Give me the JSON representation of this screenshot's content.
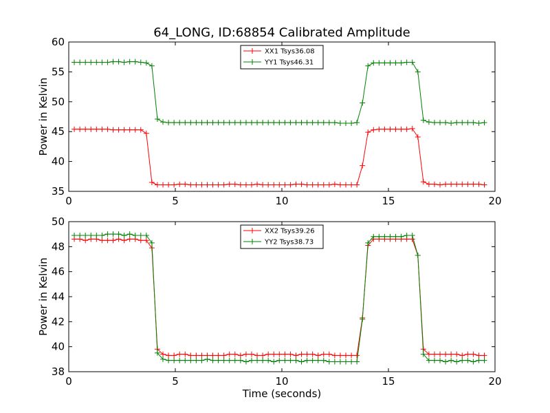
{
  "chart_data": [
    {
      "type": "line",
      "title": "64_LONG, ID:68854 Calibrated Amplitude",
      "xlabel": "",
      "ylabel": "Power in Kelvin",
      "xlim": [
        0,
        20
      ],
      "ylim": [
        35,
        60
      ],
      "xticks": [
        0,
        5,
        10,
        15,
        20
      ],
      "yticks": [
        35,
        40,
        45,
        50,
        55,
        60
      ],
      "grid": false,
      "legend_position": "top-center",
      "series": [
        {
          "name": "XX1 Tsys36.08",
          "color": "#ff0000",
          "x": [
            0.26,
            0.52,
            0.78,
            1.04,
            1.3,
            1.56,
            1.82,
            2.08,
            2.34,
            2.6,
            2.86,
            3.12,
            3.38,
            3.64,
            3.9,
            4.16,
            4.42,
            4.68,
            4.94,
            5.2,
            5.46,
            5.72,
            5.98,
            6.24,
            6.5,
            6.76,
            7.02,
            7.28,
            7.54,
            7.8,
            8.06,
            8.32,
            8.58,
            8.84,
            9.1,
            9.36,
            9.62,
            9.88,
            10.14,
            10.4,
            10.66,
            10.92,
            11.18,
            11.44,
            11.7,
            11.96,
            12.22,
            12.48,
            12.74,
            13.0,
            13.26,
            13.52,
            13.78,
            14.04,
            14.3,
            14.56,
            14.82,
            15.08,
            15.34,
            15.6,
            15.86,
            16.12,
            16.38,
            16.64,
            16.9,
            17.16,
            17.42,
            17.68,
            17.94,
            18.2,
            18.46,
            18.72,
            18.98,
            19.24,
            19.5
          ],
          "y": [
            45.4,
            45.4,
            45.4,
            45.4,
            45.4,
            45.4,
            45.4,
            45.3,
            45.3,
            45.3,
            45.3,
            45.3,
            45.3,
            44.7,
            36.5,
            36.1,
            36.1,
            36.1,
            36.1,
            36.2,
            36.2,
            36.1,
            36.1,
            36.1,
            36.1,
            36.1,
            36.1,
            36.1,
            36.2,
            36.2,
            36.1,
            36.1,
            36.1,
            36.2,
            36.1,
            36.1,
            36.1,
            36.1,
            36.1,
            36.1,
            36.2,
            36.2,
            36.1,
            36.1,
            36.1,
            36.1,
            36.1,
            36.2,
            36.1,
            36.1,
            36.1,
            36.1,
            39.3,
            44.9,
            45.3,
            45.4,
            45.4,
            45.4,
            45.4,
            45.4,
            45.4,
            45.5,
            44.1,
            36.6,
            36.2,
            36.2,
            36.1,
            36.2,
            36.2,
            36.2,
            36.2,
            36.2,
            36.2,
            36.2,
            36.1
          ]
        },
        {
          "name": "YY1 Tsys46.31",
          "color": "#008000",
          "x": [
            0.26,
            0.52,
            0.78,
            1.04,
            1.3,
            1.56,
            1.82,
            2.08,
            2.34,
            2.6,
            2.86,
            3.12,
            3.38,
            3.64,
            3.9,
            4.16,
            4.42,
            4.68,
            4.94,
            5.2,
            5.46,
            5.72,
            5.98,
            6.24,
            6.5,
            6.76,
            7.02,
            7.28,
            7.54,
            7.8,
            8.06,
            8.32,
            8.58,
            8.84,
            9.1,
            9.36,
            9.62,
            9.88,
            10.14,
            10.4,
            10.66,
            10.92,
            11.18,
            11.44,
            11.7,
            11.96,
            12.22,
            12.48,
            12.74,
            13.0,
            13.26,
            13.52,
            13.78,
            14.04,
            14.3,
            14.56,
            14.82,
            15.08,
            15.34,
            15.6,
            15.86,
            16.12,
            16.38,
            16.64,
            16.9,
            17.16,
            17.42,
            17.68,
            17.94,
            18.2,
            18.46,
            18.72,
            18.98,
            19.24,
            19.5
          ],
          "y": [
            56.6,
            56.6,
            56.6,
            56.6,
            56.6,
            56.6,
            56.6,
            56.7,
            56.7,
            56.6,
            56.7,
            56.7,
            56.6,
            56.5,
            56.0,
            47.1,
            46.6,
            46.5,
            46.5,
            46.5,
            46.5,
            46.5,
            46.5,
            46.5,
            46.5,
            46.5,
            46.5,
            46.5,
            46.5,
            46.5,
            46.5,
            46.5,
            46.5,
            46.5,
            46.5,
            46.5,
            46.5,
            46.5,
            46.5,
            46.5,
            46.5,
            46.5,
            46.5,
            46.5,
            46.5,
            46.5,
            46.5,
            46.5,
            46.4,
            46.4,
            46.4,
            46.5,
            49.8,
            56.0,
            56.5,
            56.5,
            56.5,
            56.5,
            56.5,
            56.5,
            56.6,
            56.6,
            55.0,
            46.9,
            46.6,
            46.5,
            46.5,
            46.5,
            46.4,
            46.5,
            46.5,
            46.5,
            46.5,
            46.4,
            46.5
          ]
        }
      ]
    },
    {
      "type": "line",
      "title": "",
      "xlabel": "Time (seconds)",
      "ylabel": "Power in Kelvin",
      "xlim": [
        0,
        20
      ],
      "ylim": [
        38,
        50
      ],
      "xticks": [
        0,
        5,
        10,
        15,
        20
      ],
      "yticks": [
        38,
        40,
        42,
        44,
        46,
        48,
        50
      ],
      "grid": false,
      "legend_position": "top-center",
      "series": [
        {
          "name": "XX2 Tsys39.26",
          "color": "#ff0000",
          "x": [
            0.26,
            0.52,
            0.78,
            1.04,
            1.3,
            1.56,
            1.82,
            2.08,
            2.34,
            2.6,
            2.86,
            3.12,
            3.38,
            3.64,
            3.9,
            4.16,
            4.42,
            4.68,
            4.94,
            5.2,
            5.46,
            5.72,
            5.98,
            6.24,
            6.5,
            6.76,
            7.02,
            7.28,
            7.54,
            7.8,
            8.06,
            8.32,
            8.58,
            8.84,
            9.1,
            9.36,
            9.62,
            9.88,
            10.14,
            10.4,
            10.66,
            10.92,
            11.18,
            11.44,
            11.7,
            11.96,
            12.22,
            12.48,
            12.74,
            13.0,
            13.26,
            13.52,
            13.78,
            14.04,
            14.3,
            14.56,
            14.82,
            15.08,
            15.34,
            15.6,
            15.86,
            16.12,
            16.38,
            16.64,
            16.9,
            17.16,
            17.42,
            17.68,
            17.94,
            18.2,
            18.46,
            18.72,
            18.98,
            19.24,
            19.5
          ],
          "y": [
            48.6,
            48.6,
            48.5,
            48.6,
            48.6,
            48.5,
            48.5,
            48.5,
            48.6,
            48.5,
            48.6,
            48.6,
            48.5,
            48.5,
            47.9,
            39.8,
            39.4,
            39.3,
            39.3,
            39.4,
            39.4,
            39.3,
            39.3,
            39.3,
            39.3,
            39.3,
            39.3,
            39.3,
            39.4,
            39.4,
            39.3,
            39.4,
            39.4,
            39.3,
            39.3,
            39.4,
            39.4,
            39.4,
            39.4,
            39.4,
            39.3,
            39.4,
            39.4,
            39.4,
            39.3,
            39.4,
            39.4,
            39.3,
            39.3,
            39.3,
            39.3,
            39.3,
            42.3,
            48.1,
            48.6,
            48.6,
            48.6,
            48.6,
            48.6,
            48.6,
            48.6,
            48.6,
            47.3,
            39.8,
            39.4,
            39.4,
            39.4,
            39.4,
            39.4,
            39.4,
            39.3,
            39.4,
            39.4,
            39.3,
            39.3
          ]
        },
        {
          "name": "YY2 Tsys38.73",
          "color": "#008000",
          "x": [
            0.26,
            0.52,
            0.78,
            1.04,
            1.3,
            1.56,
            1.82,
            2.08,
            2.34,
            2.6,
            2.86,
            3.12,
            3.38,
            3.64,
            3.9,
            4.16,
            4.42,
            4.68,
            4.94,
            5.2,
            5.46,
            5.72,
            5.98,
            6.24,
            6.5,
            6.76,
            7.02,
            7.28,
            7.54,
            7.8,
            8.06,
            8.32,
            8.58,
            8.84,
            9.1,
            9.36,
            9.62,
            9.88,
            10.14,
            10.4,
            10.66,
            10.92,
            11.18,
            11.44,
            11.7,
            11.96,
            12.22,
            12.48,
            12.74,
            13.0,
            13.26,
            13.52,
            13.78,
            14.04,
            14.3,
            14.56,
            14.82,
            15.08,
            15.34,
            15.6,
            15.86,
            16.12,
            16.38,
            16.64,
            16.9,
            17.16,
            17.42,
            17.68,
            17.94,
            18.2,
            18.46,
            18.72,
            18.98,
            19.24,
            19.5
          ],
          "y": [
            48.9,
            48.9,
            48.9,
            48.9,
            48.9,
            48.9,
            49.0,
            49.0,
            49.0,
            48.9,
            49.0,
            48.9,
            48.9,
            48.9,
            48.3,
            39.5,
            39.0,
            38.9,
            38.9,
            38.9,
            38.9,
            38.9,
            38.9,
            38.9,
            39.0,
            38.9,
            38.9,
            38.9,
            38.9,
            38.9,
            38.9,
            38.8,
            38.9,
            38.9,
            38.9,
            38.9,
            38.8,
            38.9,
            38.9,
            38.9,
            38.9,
            38.8,
            38.9,
            38.9,
            38.9,
            38.9,
            38.8,
            38.8,
            38.8,
            38.8,
            38.8,
            38.8,
            42.2,
            48.3,
            48.8,
            48.8,
            48.8,
            48.8,
            48.8,
            48.8,
            48.9,
            48.9,
            47.3,
            39.4,
            38.9,
            38.9,
            38.9,
            38.8,
            38.9,
            38.8,
            38.9,
            38.9,
            38.8,
            38.9,
            38.9
          ]
        }
      ]
    }
  ]
}
